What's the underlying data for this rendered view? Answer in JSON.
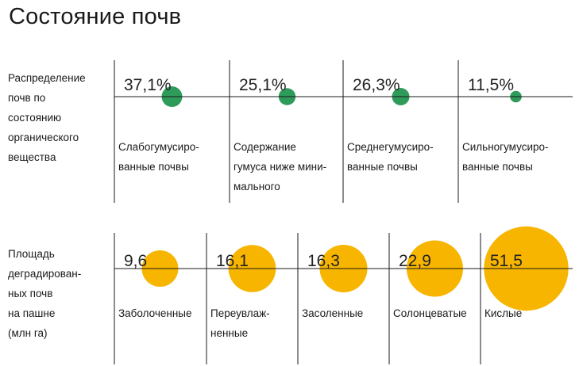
{
  "title": "Состояние почв",
  "colors": {
    "green": "#2e9b5a",
    "yellow": "#f7b500",
    "rule": "#1a1a1a"
  },
  "chart_data": [
    {
      "type": "bubble",
      "row_label": "Распределение\nпочв по\nсостоянию\nорганического\nвещества",
      "categories": [
        "Слабогумусиро-\nванные почвы",
        "Содержание\nгумуса ниже мини-\nмального",
        "Среднегумусиро-\nванные почвы",
        "Сильногумусиро-\nванные почвы"
      ],
      "value_labels": [
        "37,1%",
        "25,1%",
        "26,3%",
        "11,5%"
      ],
      "values": [
        37.1,
        25.1,
        26.3,
        11.5
      ],
      "unit": "%",
      "color": "#2e9b5a"
    },
    {
      "type": "bubble",
      "row_label": "Площадь\nдеградирован-\nных почв\nна пашне\n(млн га)",
      "categories": [
        "Заболоченные",
        "Переувлаж-\nненные",
        "Засоленные",
        "Солонцеватые",
        "Кислые"
      ],
      "value_labels": [
        "9,6",
        "16,1",
        "16,3",
        "22,9",
        "51,5"
      ],
      "values": [
        9.6,
        16.1,
        16.3,
        22.9,
        51.5
      ],
      "unit": "млн га",
      "color": "#f7b500"
    }
  ]
}
